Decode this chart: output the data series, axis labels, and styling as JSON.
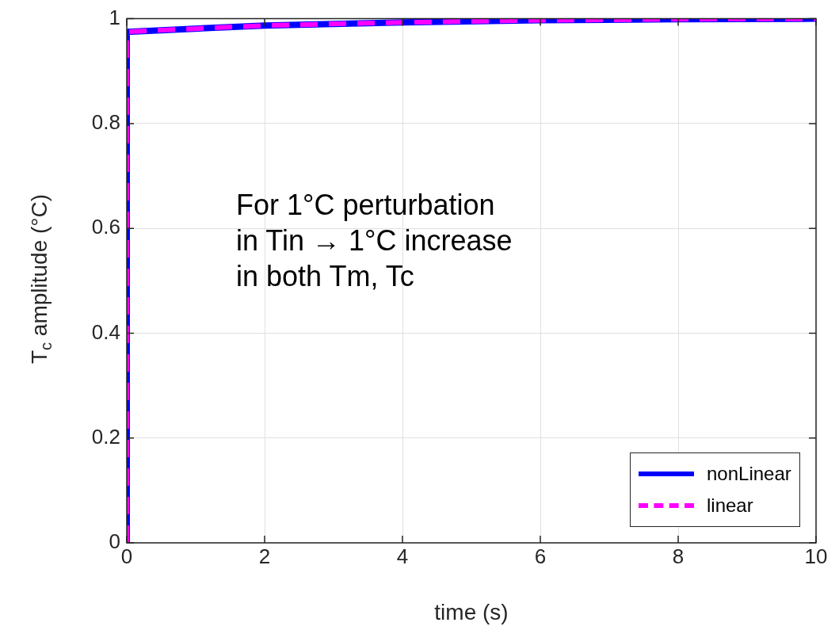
{
  "chart_data": {
    "type": "line",
    "xlabel": "time (s)",
    "ylabel": "T$_{c}$ amplitude (°C)",
    "x": [
      0,
      0,
      2,
      4,
      6,
      8,
      10
    ],
    "series": [
      {
        "name": "nonLinear",
        "color": "#0000ff",
        "line_style": "solid",
        "values": [
          0,
          0.975,
          0.987,
          0.993,
          0.997,
          0.999,
          1
        ]
      },
      {
        "name": "linear",
        "color": "#ff00ff",
        "line_style": "dashed",
        "values": [
          0,
          0.975,
          0.987,
          0.993,
          0.997,
          0.999,
          1
        ]
      }
    ],
    "xlim": [
      0,
      10
    ],
    "xticks": [
      0,
      2,
      4,
      6,
      8,
      10
    ],
    "ylim": [
      0,
      1
    ],
    "yticks": [
      0,
      0.2,
      0.4,
      0.6,
      0.8,
      1
    ],
    "grid": true,
    "legend": "bottom right",
    "marker": "none",
    "annotations": [
      "For 1°C perturbation\nin Tin → 1°C increase\nin both Tm, Tc"
    ]
  }
}
